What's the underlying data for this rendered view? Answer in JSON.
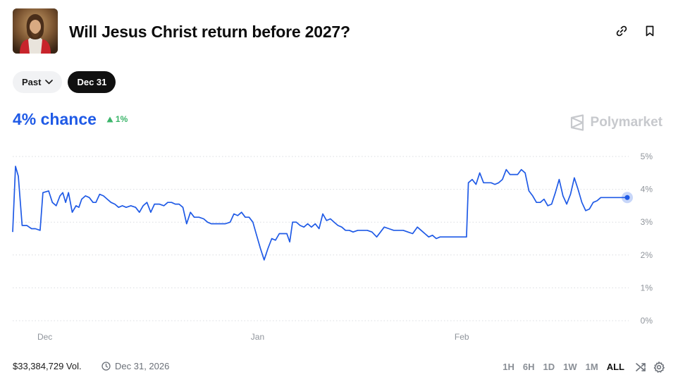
{
  "header": {
    "title": "Will Jesus Christ return before 2027?",
    "thumbnail_icon": "jesus-portrait",
    "actions": [
      {
        "icon": "link-icon"
      },
      {
        "icon": "bookmark-icon"
      }
    ]
  },
  "filters": {
    "past_label": "Past",
    "active_label": "Dec 31"
  },
  "summary": {
    "chance_label": "4% chance",
    "change_label": "1%",
    "change_color": "#3bb56a",
    "accent_color": "#1f5ae6"
  },
  "brand": {
    "watermark": "Polymarket"
  },
  "chart_data": {
    "type": "line",
    "title": "",
    "xlabel": "",
    "ylabel": "",
    "x_ticks": [
      "Dec",
      "Jan",
      "Feb"
    ],
    "y_ticks": [
      "5%",
      "4%",
      "3%",
      "2%",
      "1%",
      "0%"
    ],
    "ylim": [
      0,
      5
    ],
    "grid": true,
    "series": [
      {
        "color": "#1f5ae6",
        "points": [
          [
            0.0,
            2.7
          ],
          [
            0.3,
            4.7
          ],
          [
            0.6,
            4.4
          ],
          [
            1.0,
            2.9
          ],
          [
            1.5,
            2.9
          ],
          [
            2.0,
            2.8
          ],
          [
            2.4,
            2.8
          ],
          [
            2.9,
            2.75
          ],
          [
            3.2,
            3.9
          ],
          [
            3.8,
            3.95
          ],
          [
            4.2,
            3.6
          ],
          [
            4.6,
            3.5
          ],
          [
            5.0,
            3.8
          ],
          [
            5.3,
            3.9
          ],
          [
            5.6,
            3.6
          ],
          [
            5.9,
            3.9
          ],
          [
            6.3,
            3.3
          ],
          [
            6.7,
            3.5
          ],
          [
            7.0,
            3.45
          ],
          [
            7.3,
            3.7
          ],
          [
            7.7,
            3.8
          ],
          [
            8.1,
            3.75
          ],
          [
            8.5,
            3.6
          ],
          [
            8.8,
            3.6
          ],
          [
            9.2,
            3.85
          ],
          [
            9.6,
            3.8
          ],
          [
            10.0,
            3.7
          ],
          [
            10.4,
            3.6
          ],
          [
            10.8,
            3.55
          ],
          [
            11.2,
            3.45
          ],
          [
            11.6,
            3.5
          ],
          [
            12.0,
            3.45
          ],
          [
            12.5,
            3.5
          ],
          [
            13.0,
            3.45
          ],
          [
            13.4,
            3.3
          ],
          [
            13.8,
            3.5
          ],
          [
            14.2,
            3.6
          ],
          [
            14.6,
            3.3
          ],
          [
            15.0,
            3.55
          ],
          [
            15.5,
            3.55
          ],
          [
            16.0,
            3.5
          ],
          [
            16.4,
            3.6
          ],
          [
            16.8,
            3.6
          ],
          [
            17.2,
            3.55
          ],
          [
            17.6,
            3.55
          ],
          [
            18.0,
            3.45
          ],
          [
            18.4,
            2.95
          ],
          [
            18.8,
            3.3
          ],
          [
            19.2,
            3.15
          ],
          [
            19.7,
            3.15
          ],
          [
            20.2,
            3.1
          ],
          [
            20.6,
            3.0
          ],
          [
            21.0,
            2.95
          ],
          [
            21.5,
            2.95
          ],
          [
            22.0,
            2.95
          ],
          [
            22.5,
            2.95
          ],
          [
            23.0,
            3.0
          ],
          [
            23.4,
            3.25
          ],
          [
            23.8,
            3.2
          ],
          [
            24.2,
            3.3
          ],
          [
            24.6,
            3.15
          ],
          [
            25.0,
            3.15
          ],
          [
            25.4,
            3.0
          ],
          [
            25.8,
            2.6
          ],
          [
            26.2,
            2.2
          ],
          [
            26.6,
            1.85
          ],
          [
            27.0,
            2.2
          ],
          [
            27.4,
            2.5
          ],
          [
            27.8,
            2.45
          ],
          [
            28.2,
            2.65
          ],
          [
            28.6,
            2.65
          ],
          [
            29.0,
            2.65
          ],
          [
            29.3,
            2.4
          ],
          [
            29.6,
            3.0
          ],
          [
            30.0,
            3.0
          ],
          [
            30.4,
            2.9
          ],
          [
            30.8,
            2.85
          ],
          [
            31.2,
            2.95
          ],
          [
            31.6,
            2.85
          ],
          [
            32.0,
            2.95
          ],
          [
            32.4,
            2.8
          ],
          [
            32.8,
            3.25
          ],
          [
            33.2,
            3.05
          ],
          [
            33.6,
            3.1
          ],
          [
            34.0,
            3.0
          ],
          [
            34.4,
            2.9
          ],
          [
            34.8,
            2.85
          ],
          [
            35.2,
            2.75
          ],
          [
            35.6,
            2.75
          ],
          [
            36.0,
            2.7
          ],
          [
            36.5,
            2.75
          ],
          [
            37.0,
            2.75
          ],
          [
            37.5,
            2.75
          ],
          [
            38.0,
            2.7
          ],
          [
            38.5,
            2.55
          ],
          [
            38.9,
            2.7
          ],
          [
            39.3,
            2.85
          ],
          [
            39.8,
            2.8
          ],
          [
            40.3,
            2.75
          ],
          [
            40.8,
            2.75
          ],
          [
            41.3,
            2.75
          ],
          [
            41.8,
            2.7
          ],
          [
            42.3,
            2.65
          ],
          [
            42.8,
            2.85
          ],
          [
            43.2,
            2.75
          ],
          [
            43.6,
            2.65
          ],
          [
            44.0,
            2.55
          ],
          [
            44.4,
            2.6
          ],
          [
            44.8,
            2.5
          ],
          [
            45.2,
            2.55
          ],
          [
            45.6,
            2.55
          ],
          [
            46.0,
            2.55
          ],
          [
            46.4,
            2.55
          ],
          [
            46.9,
            2.55
          ],
          [
            47.3,
            2.55
          ],
          [
            47.7,
            2.55
          ],
          [
            48.0,
            2.55
          ],
          [
            48.2,
            4.2
          ],
          [
            48.6,
            4.3
          ],
          [
            49.0,
            4.15
          ],
          [
            49.4,
            4.5
          ],
          [
            49.8,
            4.2
          ],
          [
            50.2,
            4.2
          ],
          [
            50.6,
            4.2
          ],
          [
            51.0,
            4.15
          ],
          [
            51.4,
            4.2
          ],
          [
            51.8,
            4.3
          ],
          [
            52.2,
            4.6
          ],
          [
            52.6,
            4.45
          ],
          [
            53.0,
            4.45
          ],
          [
            53.4,
            4.45
          ],
          [
            53.8,
            4.6
          ],
          [
            54.2,
            4.5
          ],
          [
            54.6,
            3.95
          ],
          [
            55.0,
            3.8
          ],
          [
            55.4,
            3.6
          ],
          [
            55.8,
            3.6
          ],
          [
            56.2,
            3.7
          ],
          [
            56.6,
            3.5
          ],
          [
            57.0,
            3.55
          ],
          [
            57.4,
            3.9
          ],
          [
            57.8,
            4.3
          ],
          [
            58.2,
            3.8
          ],
          [
            58.6,
            3.55
          ],
          [
            59.0,
            3.85
          ],
          [
            59.4,
            4.35
          ],
          [
            59.8,
            4.0
          ],
          [
            60.2,
            3.6
          ],
          [
            60.6,
            3.35
          ],
          [
            61.0,
            3.4
          ],
          [
            61.4,
            3.6
          ],
          [
            61.8,
            3.65
          ],
          [
            62.2,
            3.75
          ],
          [
            62.6,
            3.75
          ],
          [
            63.0,
            3.75
          ],
          [
            63.4,
            3.75
          ],
          [
            63.8,
            3.75
          ],
          [
            64.2,
            3.75
          ],
          [
            64.6,
            3.75
          ],
          [
            65.0,
            3.75
          ]
        ]
      }
    ],
    "x_range": [
      0,
      65
    ],
    "x_tick_positions": [
      3.4,
      25.9,
      47.5
    ],
    "last_point_marker": true
  },
  "footer": {
    "volume": "$33,384,729 Vol.",
    "end_date": "Dec 31, 2026",
    "ranges": [
      "1H",
      "6H",
      "1D",
      "1W",
      "1M",
      "ALL"
    ],
    "active_range": "ALL"
  }
}
